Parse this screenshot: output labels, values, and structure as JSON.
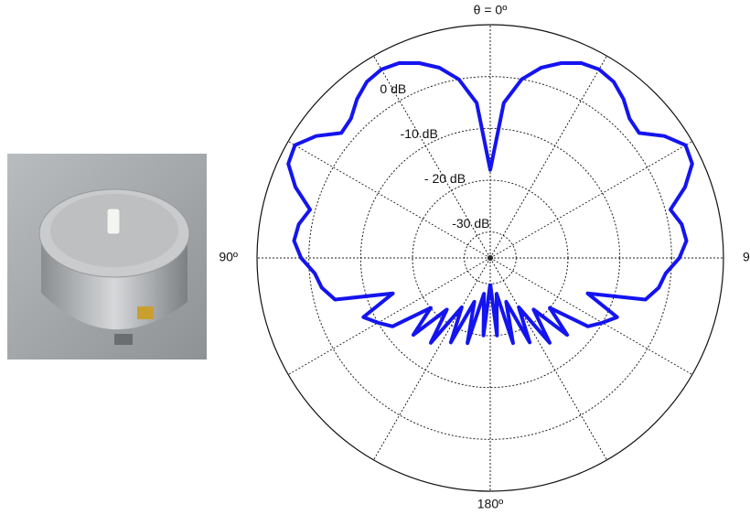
{
  "chart_data": {
    "type": "polar",
    "theta": [
      -180,
      -175,
      -170,
      -165,
      -160,
      -155,
      -150,
      -145,
      -140,
      -135,
      -130,
      -125,
      -120,
      -115,
      -110,
      -105,
      -100,
      -95,
      -90,
      -85,
      -80,
      -75,
      -70,
      -65,
      -60,
      -55,
      -50,
      -45,
      -40,
      -35,
      -30,
      -25,
      -20,
      -15,
      -10,
      -5,
      0,
      5,
      10,
      15,
      20,
      25,
      30,
      35,
      40,
      45,
      50,
      55,
      60,
      65,
      70,
      75,
      80,
      85,
      90,
      95,
      100,
      105,
      110,
      115,
      120,
      125,
      130,
      135,
      140,
      145,
      150,
      155,
      160,
      165,
      170,
      175,
      180
    ],
    "series": [
      {
        "color": "#1414f0",
        "values": [
          -30,
          -20,
          -28,
          -18,
          -26,
          -17,
          -24,
          -15,
          -22,
          -14,
          -20,
          -12,
          -10,
          -8,
          -15,
          -4,
          -2,
          -1,
          1.5,
          3,
          2.5,
          1,
          5,
          8,
          8.5,
          6,
          2.5,
          3,
          5,
          6.5,
          7,
          6.5,
          5,
          3,
          0,
          -5,
          -18,
          -5,
          0,
          3,
          5,
          6.5,
          7,
          6.5,
          5,
          3,
          2.5,
          6,
          8.5,
          8,
          5,
          1,
          2.5,
          3,
          1.5,
          -1,
          -2,
          -4,
          -15,
          -8,
          -10,
          -12,
          -20,
          -14,
          -22,
          -15,
          -24,
          -17,
          -26,
          -18,
          -28,
          -20,
          -30
        ]
      }
    ],
    "rlim": [
      -35,
      10
    ],
    "rticks": [
      {
        "value": -30,
        "label": "-30 dB"
      },
      {
        "value": -20,
        "label": "- 20 dB"
      },
      {
        "value": -10,
        "label": "-10 dB"
      },
      {
        "value": 0,
        "label": "0 dB"
      }
    ],
    "thetaticks": [
      {
        "value": 0,
        "label": "θ = 0º"
      },
      {
        "value": 90,
        "label": "90º"
      },
      {
        "value": -90,
        "label": "90º"
      },
      {
        "value": 180,
        "label": "180º"
      }
    ],
    "grid": true
  }
}
